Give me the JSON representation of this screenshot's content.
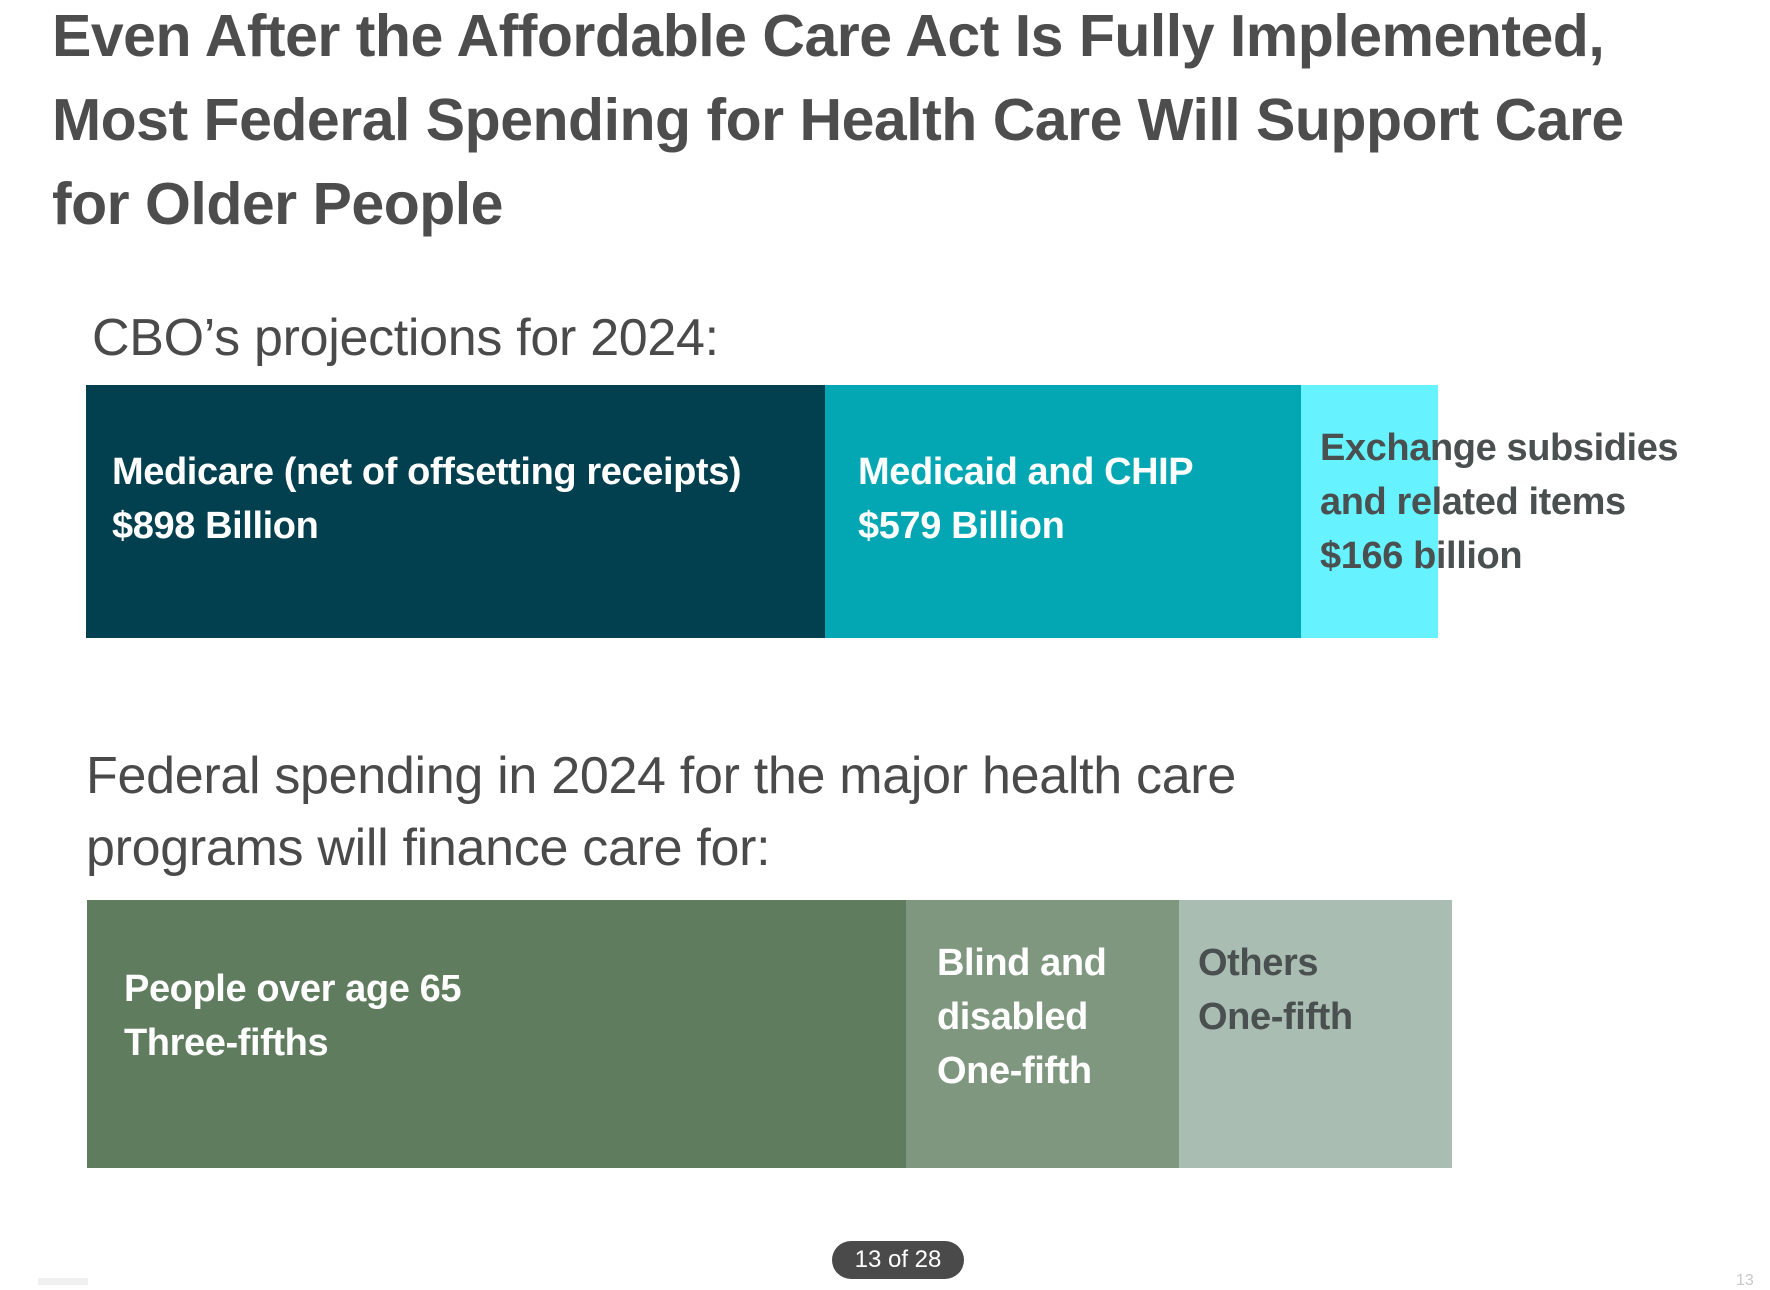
{
  "slide": {
    "title_lines": [
      "Even After the Affordable Care Act Is Fully Implemented,",
      "Most Federal Spending for Health Care Will Support Care",
      "for Older People"
    ],
    "page_indicator": "13 of 28",
    "corner_page_number": "13"
  },
  "chart_data": [
    {
      "type": "bar",
      "orientation": "horizontal-stacked",
      "title": "CBO’s projections for 2024:",
      "units": "billions of dollars",
      "categories": [
        "Medicare (net of offsetting receipts)",
        "Medicaid and CHIP",
        "Exchange subsidies and related items"
      ],
      "values": [
        898,
        579,
        166
      ],
      "segments": [
        {
          "name": "Medicare (net of offsetting receipts)",
          "value": 898,
          "label_lines": [
            "Medicare (net of offsetting receipts)",
            "$898 Billion"
          ],
          "color": "#03404f",
          "text_color": "#ffffff"
        },
        {
          "name": "Medicaid and CHIP",
          "value": 579,
          "label_lines": [
            "Medicaid and CHIP",
            "$579 Billion"
          ],
          "color": "#02a7b3",
          "text_color": "#ffffff"
        },
        {
          "name": "Exchange subsidies and related items",
          "value": 166,
          "label_lines": [
            "Exchange subsidies",
            "and related items",
            "$166 billion"
          ],
          "color": "#66f3ff",
          "text_color": "#4a4f4f"
        }
      ]
    },
    {
      "type": "bar",
      "orientation": "horizontal-stacked",
      "title": "Federal spending in 2024 for the major health care programs will finance care for:",
      "title_lines": [
        "Federal spending in 2024 for the major health care",
        "programs will finance care for:"
      ],
      "units": "share of spending",
      "categories": [
        "People over age 65",
        "Blind and disabled",
        "Others"
      ],
      "values": [
        0.6,
        0.2,
        0.2
      ],
      "segments": [
        {
          "name": "People over age 65",
          "value": 0.6,
          "label_lines": [
            "People over age 65",
            "Three-fifths"
          ],
          "color": "#5f7c5f",
          "text_color": "#ffffff"
        },
        {
          "name": "Blind and disabled",
          "value": 0.2,
          "label_lines": [
            "Blind and",
            "disabled",
            "One-fifth"
          ],
          "color": "#7f977f",
          "text_color": "#ffffff"
        },
        {
          "name": "Others",
          "value": 0.2,
          "label_lines": [
            "Others",
            "One-fifth"
          ],
          "color": "#a9bdb3",
          "text_color": "#4a4f4f"
        }
      ]
    }
  ]
}
